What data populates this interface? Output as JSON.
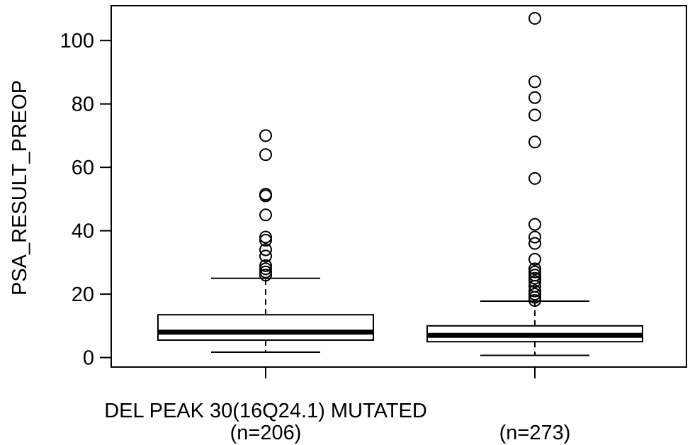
{
  "chart_data": {
    "type": "boxplot",
    "title": "",
    "xlabel": "",
    "ylabel": "PSA_RESULT_PREOP",
    "ylim": [
      -3,
      111
    ],
    "yticks": [
      0,
      20,
      40,
      60,
      80,
      100
    ],
    "grid": false,
    "axis_caption": "DEL PEAK 30(16Q24.1) MUTATED",
    "groups": [
      {
        "label": "(n=206)",
        "whisker_low": 1.7,
        "q1": 5.5,
        "median": 8.0,
        "q3": 13.5,
        "whisker_high": 25.0,
        "outliers": [
          26.0,
          27.0,
          28.0,
          29.0,
          32.0,
          34.0,
          37.0,
          38.0,
          45.0,
          51.0,
          51.5,
          64.0,
          70.0
        ]
      },
      {
        "label": "(n=273)",
        "whisker_low": 0.7,
        "q1": 5.0,
        "median": 7.0,
        "q3": 10.0,
        "whisker_high": 17.8,
        "outliers": [
          18.0,
          19.0,
          20.0,
          21.0,
          22.5,
          24.0,
          25.0,
          26.0,
          27.0,
          28.0,
          31.0,
          36.0,
          38.0,
          42.0,
          56.5,
          68.0,
          76.5,
          82.0,
          87.0,
          107.0
        ]
      }
    ]
  }
}
